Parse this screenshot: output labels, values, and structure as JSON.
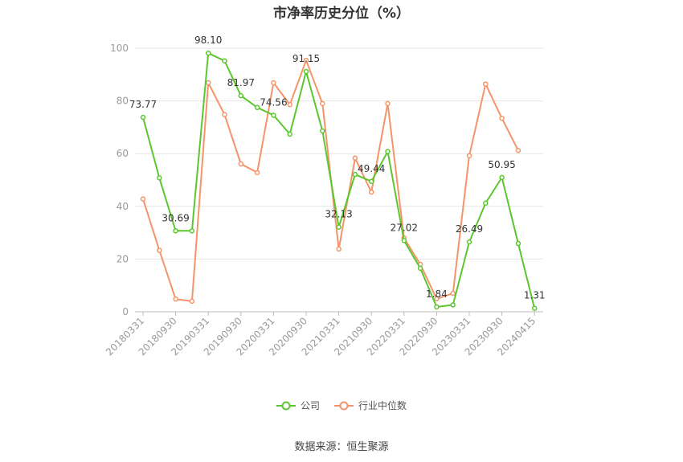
{
  "title": "市净率历史分位（%）",
  "source": "数据来源：恒生聚源",
  "colors": {
    "company": "#5ac72f",
    "industry": "#f4946a",
    "grid": "#e6e6e6",
    "axis": "#999999"
  },
  "chart_data": {
    "type": "line",
    "title": "市净率历史分位（%）",
    "ylim": [
      0,
      100
    ],
    "yticks": [
      0,
      20,
      40,
      60,
      80,
      100
    ],
    "grid": true,
    "legend_position": "bottom",
    "x_tick_labels": [
      "20180331",
      "20180930",
      "20190331",
      "20190930",
      "20200331",
      "20200930",
      "20210331",
      "20210930",
      "20220331",
      "20220930",
      "20230331",
      "20230930",
      "20240415"
    ],
    "x_tick_indices": [
      0,
      2,
      4,
      6,
      8,
      10,
      12,
      14,
      16,
      18,
      20,
      22,
      24
    ],
    "series": [
      {
        "name": "公司",
        "color": "#5ac72f",
        "values": [
          73.77,
          50.8,
          30.69,
          30.69,
          98.1,
          95.2,
          81.97,
          77.5,
          74.56,
          67.4,
          91.15,
          68.6,
          32.13,
          52.1,
          49.44,
          60.8,
          27.02,
          16.5,
          1.84,
          2.6,
          26.49,
          41.2,
          50.95,
          25.9,
          1.31
        ],
        "labels": {
          "0": "73.77",
          "2": "30.69",
          "4": "98.10",
          "6": "81.97",
          "8": "74.56",
          "10": "91.15",
          "12": "32.13",
          "14": "49.44",
          "16": "27.02",
          "18": "1.84",
          "20": "26.49",
          "22": "50.95",
          "24": "1.31"
        }
      },
      {
        "name": "行业中位数",
        "color": "#f4946a",
        "values": [
          42.8,
          23.3,
          4.8,
          4.0,
          86.9,
          74.8,
          56.1,
          52.8,
          86.9,
          78.6,
          95.4,
          79.0,
          23.8,
          58.3,
          45.4,
          79.0,
          28.0,
          18.0,
          4.9,
          7.0,
          59.2,
          86.4,
          73.4,
          61.2,
          null
        ]
      }
    ]
  }
}
